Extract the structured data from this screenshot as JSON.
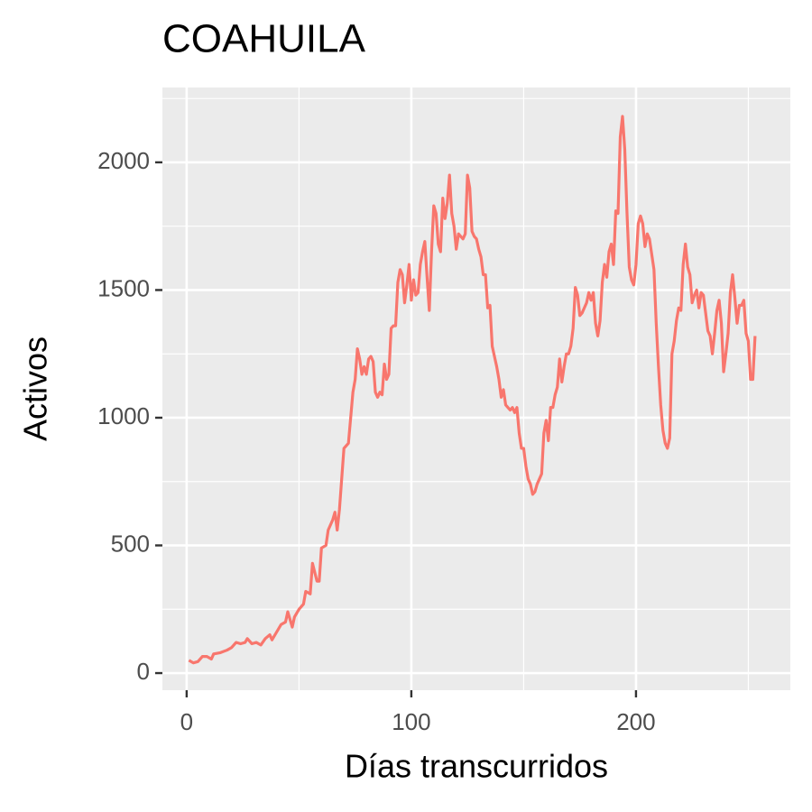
{
  "chart_data": {
    "type": "line",
    "title": "COAHUILA",
    "x_label": "Días transcurridos",
    "y_label": "Activos",
    "x": [
      1,
      3,
      5,
      7,
      9,
      11,
      12,
      15,
      18,
      20,
      22,
      24,
      26,
      27,
      29,
      31,
      33,
      35,
      37,
      38,
      40,
      42,
      44,
      45,
      47,
      48,
      50,
      52,
      53,
      55,
      56,
      58,
      59,
      60,
      62,
      63,
      65,
      66,
      67,
      68,
      70,
      72,
      73,
      74,
      75,
      76,
      77,
      78,
      79,
      80,
      81,
      82,
      83,
      84,
      85,
      86,
      87,
      88,
      89,
      90,
      91,
      92,
      93,
      94,
      95,
      96,
      97,
      98,
      99,
      100,
      101,
      102,
      103,
      104,
      105,
      106,
      107,
      108,
      109,
      110,
      111,
      112,
      113,
      114,
      115,
      116,
      117,
      118,
      119,
      120,
      121,
      122,
      123,
      124,
      125,
      126,
      127,
      128,
      129,
      130,
      131,
      132,
      133,
      134,
      135,
      136,
      137,
      138,
      139,
      140,
      141,
      142,
      143,
      144,
      145,
      146,
      147,
      148,
      149,
      150,
      151,
      152,
      153,
      154,
      155,
      156,
      157,
      158,
      159,
      160,
      161,
      162,
      163,
      164,
      165,
      166,
      167,
      168,
      169,
      170,
      171,
      172,
      173,
      174,
      175,
      176,
      177,
      178,
      179,
      180,
      181,
      182,
      183,
      184,
      185,
      186,
      187,
      188,
      189,
      190,
      191,
      192,
      193,
      194,
      195,
      196,
      197,
      198,
      199,
      200,
      201,
      202,
      203,
      204,
      205,
      206,
      207,
      208,
      209,
      210,
      211,
      212,
      213,
      214,
      215,
      216,
      217,
      218,
      219,
      220,
      221,
      222,
      223,
      224,
      225,
      226,
      227,
      228,
      229,
      230,
      231,
      232,
      233,
      234,
      235,
      236,
      237,
      238,
      239,
      240,
      241,
      242,
      243,
      244,
      245,
      246,
      247,
      248,
      249,
      250,
      251,
      252,
      253
    ],
    "values": [
      50,
      40,
      45,
      65,
      65,
      55,
      75,
      80,
      90,
      100,
      120,
      115,
      120,
      135,
      115,
      120,
      110,
      135,
      150,
      130,
      160,
      190,
      200,
      240,
      180,
      220,
      250,
      270,
      320,
      310,
      430,
      360,
      360,
      490,
      500,
      560,
      600,
      630,
      560,
      640,
      880,
      900,
      1000,
      1100,
      1150,
      1270,
      1230,
      1170,
      1200,
      1170,
      1230,
      1240,
      1220,
      1100,
      1080,
      1100,
      1090,
      1210,
      1150,
      1170,
      1350,
      1360,
      1360,
      1530,
      1580,
      1560,
      1450,
      1520,
      1600,
      1460,
      1540,
      1480,
      1490,
      1600,
      1650,
      1690,
      1550,
      1420,
      1650,
      1830,
      1800,
      1680,
      1650,
      1860,
      1780,
      1840,
      1950,
      1800,
      1750,
      1660,
      1720,
      1710,
      1700,
      1720,
      1950,
      1900,
      1730,
      1710,
      1700,
      1660,
      1630,
      1560,
      1560,
      1430,
      1440,
      1280,
      1240,
      1200,
      1150,
      1080,
      1110,
      1050,
      1040,
      1030,
      1040,
      1020,
      1040,
      940,
      880,
      880,
      810,
      760,
      740,
      700,
      710,
      740,
      760,
      780,
      940,
      990,
      910,
      1040,
      1040,
      1090,
      1120,
      1230,
      1140,
      1200,
      1250,
      1250,
      1280,
      1350,
      1510,
      1480,
      1400,
      1410,
      1430,
      1450,
      1490,
      1460,
      1490,
      1370,
      1320,
      1380,
      1530,
      1600,
      1550,
      1650,
      1680,
      1600,
      1810,
      1800,
      2100,
      2180,
      2050,
      1800,
      1590,
      1540,
      1520,
      1600,
      1760,
      1790,
      1760,
      1670,
      1720,
      1700,
      1640,
      1580,
      1370,
      1200,
      1050,
      950,
      900,
      880,
      920,
      1250,
      1300,
      1380,
      1430,
      1420,
      1600,
      1680,
      1590,
      1560,
      1450,
      1480,
      1500,
      1430,
      1490,
      1480,
      1410,
      1340,
      1320,
      1250,
      1330,
      1420,
      1460,
      1370,
      1180,
      1250,
      1330,
      1490,
      1560,
      1470,
      1370,
      1440,
      1440,
      1460,
      1330,
      1300,
      1150,
      1150,
      1320
    ],
    "color": "#f8766d",
    "xlim": [
      -10.8,
      268.7
    ],
    "ylim": [
      -67,
      2293
    ],
    "xticks": [
      0,
      100,
      200
    ],
    "yticks": [
      0,
      500,
      1000,
      1500,
      2000
    ],
    "xminor": [
      50,
      150,
      250
    ],
    "yminor": [
      250,
      750,
      1250,
      1750,
      2250
    ],
    "grid": true
  }
}
